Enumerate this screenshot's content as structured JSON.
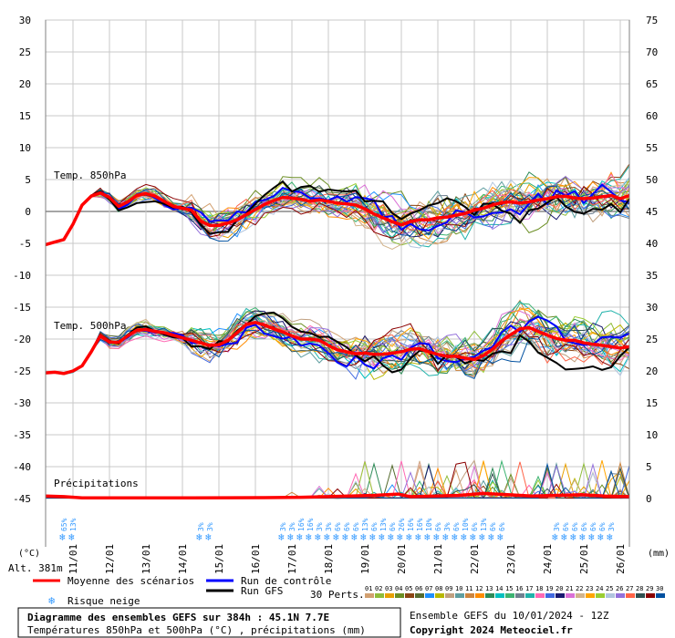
{
  "chart_data": {
    "type": "line",
    "left_axis": {
      "unit": "(°C)",
      "ticks": [
        30,
        25,
        20,
        15,
        10,
        5,
        0,
        -5,
        -10,
        -15,
        -20,
        -25,
        -30,
        -35,
        -40,
        -45
      ],
      "ylim": [
        -45,
        30
      ]
    },
    "right_axis": {
      "unit": "(mm)",
      "ticks": [
        75,
        70,
        65,
        60,
        55,
        50,
        45,
        40,
        35,
        30,
        25,
        20,
        15,
        10,
        5,
        0
      ],
      "ylim": [
        0,
        75
      ]
    },
    "x_labels": [
      "11/01",
      "12/01",
      "13/01",
      "14/01",
      "15/01",
      "16/01",
      "17/01",
      "18/01",
      "19/01",
      "20/01",
      "21/01",
      "22/01",
      "23/01",
      "24/01",
      "25/01",
      "26/01"
    ],
    "x_range_hours": [
      0,
      384
    ],
    "panels": [
      {
        "label": "Temp. 850hPa"
      },
      {
        "label": "Temp. 500hPa"
      },
      {
        "label": "Précipitations"
      }
    ],
    "altitude_label": "Alt. 381m",
    "series": [
      {
        "name": "Moyenne des scénarios",
        "color": "#ff0000",
        "level": "850hPa",
        "x": [
          0,
          6,
          12,
          18,
          24,
          30,
          36,
          42,
          48,
          54,
          60,
          66,
          72,
          78,
          84,
          90,
          96,
          102,
          108,
          114,
          120,
          126,
          132,
          138,
          144,
          150,
          156,
          162,
          168,
          174,
          180,
          186,
          192,
          198,
          204,
          210,
          216,
          222,
          228,
          234,
          240,
          246,
          252,
          258,
          264,
          270,
          276,
          282,
          288,
          294,
          300,
          306,
          312,
          318,
          324,
          330,
          336,
          342,
          348,
          354,
          360,
          366,
          372,
          378,
          384
        ],
        "values": [
          -5.2,
          -4.8,
          -4.4,
          -2,
          1,
          2.4,
          2.9,
          2.2,
          0.8,
          1.5,
          2.5,
          2.8,
          2.4,
          1.6,
          0.8,
          0.5,
          0.2,
          -1.5,
          -2.2,
          -2.2,
          -1.8,
          -1.3,
          -0.5,
          0.3,
          1.1,
          1.7,
          2.2,
          2.1,
          1.9,
          1.6,
          1.8,
          1.6,
          1.3,
          1.2,
          1,
          0.4,
          -0.4,
          -1,
          -1.6,
          -2.1,
          -1.6,
          -1.3,
          -1.3,
          -1,
          -0.9,
          -0.6,
          -0.3,
          0.2,
          0.5,
          1,
          1.4,
          1.5,
          1.3,
          1.5,
          1.8,
          2,
          2.3,
          2.4,
          2.1,
          2,
          2.1,
          2.3,
          2.5,
          2,
          2.5
        ]
      },
      {
        "name": "Moyenne des scénarios",
        "color": "#ff0000",
        "level": "500hPa",
        "x": [
          0,
          6,
          12,
          18,
          24,
          30,
          36,
          42,
          48,
          54,
          60,
          66,
          72,
          78,
          84,
          90,
          96,
          102,
          108,
          114,
          120,
          126,
          132,
          138,
          144,
          150,
          156,
          162,
          168,
          174,
          180,
          186,
          192,
          198,
          204,
          210,
          216,
          222,
          228,
          234,
          240,
          246,
          252,
          258,
          264,
          270,
          276,
          282,
          288,
          294,
          300,
          306,
          312,
          318,
          324,
          330,
          336,
          342,
          348,
          354,
          360,
          366,
          372,
          378,
          384
        ],
        "values": [
          -25.3,
          -25.2,
          -25.4,
          -25,
          -24.2,
          -22,
          -19.5,
          -20.5,
          -20.5,
          -19.5,
          -18.6,
          -18.5,
          -18.8,
          -19,
          -19.4,
          -19.8,
          -20.2,
          -20.6,
          -21,
          -20.9,
          -20.2,
          -19,
          -17.7,
          -17.4,
          -17.8,
          -18.4,
          -18.9,
          -19.5,
          -20,
          -20,
          -20.2,
          -21,
          -21.7,
          -22,
          -22.3,
          -22.2,
          -22.4,
          -22.4,
          -22.2,
          -22,
          -21.6,
          -21.5,
          -22,
          -22.4,
          -22.7,
          -22.7,
          -23,
          -23.2,
          -22.6,
          -21.6,
          -20.3,
          -19.3,
          -18.4,
          -18.2,
          -18.8,
          -19.4,
          -19.9,
          -20.2,
          -20.2,
          -20.6,
          -20.8,
          -21,
          -21.2,
          -21.4,
          -21.2
        ]
      },
      {
        "name": "Moyenne des scénarios",
        "color": "#ff0000",
        "level": "Précipitations",
        "units": "mm",
        "x": [
          0,
          12,
          24,
          48,
          96,
          144,
          168,
          200,
          216,
          232,
          240,
          256,
          272,
          288,
          304,
          320,
          336,
          352,
          368,
          384
        ],
        "values": [
          0.4,
          0.3,
          0.1,
          0.1,
          0.1,
          0.15,
          0.2,
          0.4,
          0.5,
          0.7,
          0.3,
          0.4,
          0.5,
          0.8,
          0.6,
          0.4,
          0.5,
          0.6,
          0.4,
          0.3
        ]
      }
    ],
    "snow_risk": {
      "label": "Risque neige",
      "marks": [
        {
          "hour": 12,
          "pct": "65%"
        },
        {
          "hour": 18,
          "pct": "13%"
        },
        {
          "hour": 102,
          "pct": "3%"
        },
        {
          "hour": 108,
          "pct": "3%"
        },
        {
          "hour": 156,
          "pct": "3%"
        },
        {
          "hour": 162,
          "pct": "3%"
        },
        {
          "hour": 168,
          "pct": "16%"
        },
        {
          "hour": 174,
          "pct": "16%"
        },
        {
          "hour": 180,
          "pct": "3%"
        },
        {
          "hour": 186,
          "pct": "3%"
        },
        {
          "hour": 192,
          "pct": "6%"
        },
        {
          "hour": 198,
          "pct": "6%"
        },
        {
          "hour": 204,
          "pct": "6%"
        },
        {
          "hour": 210,
          "pct": "13%"
        },
        {
          "hour": 216,
          "pct": "6%"
        },
        {
          "hour": 222,
          "pct": "13%"
        },
        {
          "hour": 228,
          "pct": "6%"
        },
        {
          "hour": 234,
          "pct": "26%"
        },
        {
          "hour": 240,
          "pct": "16%"
        },
        {
          "hour": 246,
          "pct": "16%"
        },
        {
          "hour": 252,
          "pct": "10%"
        },
        {
          "hour": 258,
          "pct": "6%"
        },
        {
          "hour": 264,
          "pct": "3%"
        },
        {
          "hour": 270,
          "pct": "6%"
        },
        {
          "hour": 276,
          "pct": "10%"
        },
        {
          "hour": 282,
          "pct": "6%"
        },
        {
          "hour": 288,
          "pct": "13%"
        },
        {
          "hour": 294,
          "pct": "6%"
        },
        {
          "hour": 300,
          "pct": "6%"
        },
        {
          "hour": 336,
          "pct": "3%"
        },
        {
          "hour": 342,
          "pct": "6%"
        },
        {
          "hour": 348,
          "pct": "6%"
        },
        {
          "hour": 354,
          "pct": "6%"
        },
        {
          "hour": 360,
          "pct": "6%"
        },
        {
          "hour": 366,
          "pct": "6%"
        },
        {
          "hour": 372,
          "pct": "3%"
        }
      ]
    }
  },
  "legend": {
    "mean": {
      "label": "Moyenne des scénarios",
      "color": "#ff0000"
    },
    "control": {
      "label": "Run de contrôle",
      "color": "#0000ff"
    },
    "gfs": {
      "label": "Run GFS",
      "color": "#000000"
    },
    "snow": {
      "label": "Risque neige",
      "color": "#3399ff"
    },
    "perts_label": "30 Perts.",
    "perts": [
      {
        "n": "01",
        "color": "#d2a070"
      },
      {
        "n": "02",
        "color": "#8fbc3a"
      },
      {
        "n": "03",
        "color": "#e8a000"
      },
      {
        "n": "04",
        "color": "#6b8e23"
      },
      {
        "n": "05",
        "color": "#8b4513"
      },
      {
        "n": "06",
        "color": "#556b2f"
      },
      {
        "n": "07",
        "color": "#1e90ff"
      },
      {
        "n": "08",
        "color": "#b8b800"
      },
      {
        "n": "09",
        "color": "#c0a080"
      },
      {
        "n": "10",
        "color": "#5f9ea0"
      },
      {
        "n": "11",
        "color": "#cd853f"
      },
      {
        "n": "12",
        "color": "#ff8c00"
      },
      {
        "n": "13",
        "color": "#2e8b57"
      },
      {
        "n": "14",
        "color": "#00c0c0"
      },
      {
        "n": "15",
        "color": "#3cb371"
      },
      {
        "n": "16",
        "color": "#708090"
      },
      {
        "n": "17",
        "color": "#20b2aa"
      },
      {
        "n": "18",
        "color": "#ff69b4"
      },
      {
        "n": "19",
        "color": "#4169e1"
      },
      {
        "n": "20",
        "color": "#191970"
      },
      {
        "n": "21",
        "color": "#da70d6"
      },
      {
        "n": "22",
        "color": "#d2b48c"
      },
      {
        "n": "23",
        "color": "#ffa500"
      },
      {
        "n": "24",
        "color": "#9acd32"
      },
      {
        "n": "25",
        "color": "#b0c4de"
      },
      {
        "n": "26",
        "color": "#9370db"
      },
      {
        "n": "27",
        "color": "#ff6347"
      },
      {
        "n": "28",
        "color": "#2f4f4f"
      },
      {
        "n": "29",
        "color": "#8b0000"
      },
      {
        "n": "30",
        "color": "#0050a0"
      }
    ]
  },
  "footer": {
    "title": "Diagramme des ensembles GEFS sur 384h : 45.1N 7.7E",
    "subtitle": "Températures 850hPa et 500hPa (°C) , précipitations (mm)",
    "run": "Ensemble GEFS du 10/01/2024 - 12Z",
    "copyright": "Copyright 2024 Meteociel.fr"
  }
}
